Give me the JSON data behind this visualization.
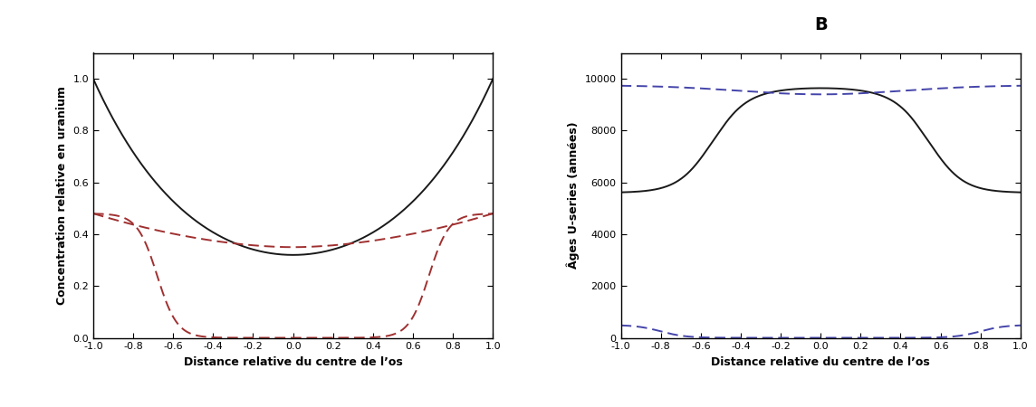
{
  "title": "B",
  "left_ylabel": "Concentration relative en uranium",
  "right_ylabel": "Âges U-series (années)",
  "xlabel": "Distance relative du centre de l’os",
  "left_ylim": [
    0.0,
    1.1
  ],
  "left_yticks": [
    0.0,
    0.2,
    0.4,
    0.6,
    0.8,
    1.0
  ],
  "right_ylim": [
    0,
    11000
  ],
  "right_yticks": [
    0,
    2000,
    4000,
    6000,
    8000,
    10000
  ],
  "xlim": [
    -1.0,
    1.0
  ],
  "xticks": [
    -1.0,
    -0.8,
    -0.6,
    -0.4,
    -0.2,
    0.0,
    0.2,
    0.4,
    0.6,
    0.8,
    1.0
  ],
  "xtick_labels": [
    "-1.0",
    "-0.8",
    "-0.6",
    "-0.4",
    "-0.2",
    "0.0",
    "0.2",
    "0.4",
    "0.6",
    "0.8",
    "1.0"
  ],
  "black_color": "#1a1a1a",
  "red_color": "#a03030",
  "blue_color": "#4444aa",
  "bg_color": "#ffffff",
  "linewidth": 1.4,
  "dash_pattern": [
    6,
    3
  ]
}
